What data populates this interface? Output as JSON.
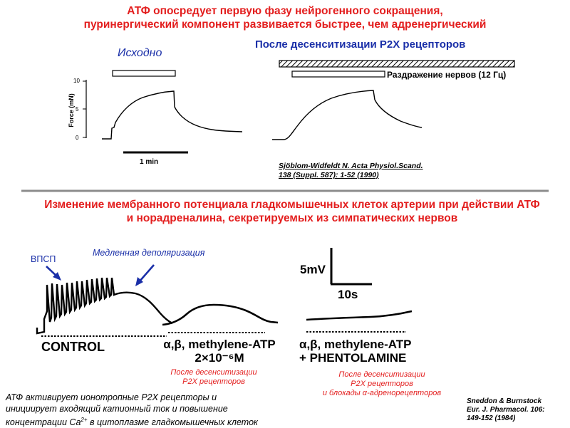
{
  "top": {
    "title_line1": "АТФ опосредует первую фазу нейрогенного сокращения,",
    "title_line2": "пуринергический компонент развивается быстрее, чем адренергический",
    "label_baseline": "Исходно",
    "label_after_desens": "После десенситизации P2X рецепторов",
    "label_stimulation": "Раздражение нервов (12 Гц)",
    "y_axis_label": "Force (mN)",
    "y_ticks": [
      "10",
      "5",
      "0"
    ],
    "scale_bar_label": "1 min",
    "reference_line1": "Sjöblom-Widfeldt N. Acta Physiol.Scand.",
    "reference_line2": "138 (Suppl. 587): 1-52 (1990)"
  },
  "bottom": {
    "title_line1": "Изменение мембранного потенциала гладкомышечных клеток артерии при действии АТФ",
    "title_line2": "и норадреналина, секретируемых из симпатических нервов",
    "label_vpsp": "ВПСП",
    "label_slow_depol": "Медленная деполяризация",
    "scale_mv": "5mV",
    "scale_s": "10s",
    "trace1_label": "CONTROL",
    "trace2_label_line1": "α,β, methylene-ATP",
    "trace2_label_line2": "2×10⁻⁶M",
    "trace3_label_line1": "α,β, methylene-ATP",
    "trace3_label_line2": "+ PHENTOLAMINE",
    "note2_line1": "После десенситизации",
    "note2_line2": "P2X рецепторов",
    "note3_line1": "После десенситизации",
    "note3_line2": "P2X рецепторов",
    "note3_line3": "и блокады α-адренорецепторов",
    "summary_line1": "АТФ активирует ионотропные P2X рецепторы  и",
    "summary_line2": "инициирует входящий катионный ток и повышение",
    "summary_line3_a": "концентрации Ca",
    "summary_line3_sup": "2+",
    "summary_line3_b": " в цитоплазме гладкомышечных клеток",
    "reference_line1": "Sneddon & Burnstock",
    "reference_line2": "Eur. J. Pharmacol. 106:",
    "reference_line3": "149-152 (1984)"
  },
  "colors": {
    "title_red": "#e31e1e",
    "label_blue": "#1a2fa8",
    "divider": "#8c8c8c"
  }
}
